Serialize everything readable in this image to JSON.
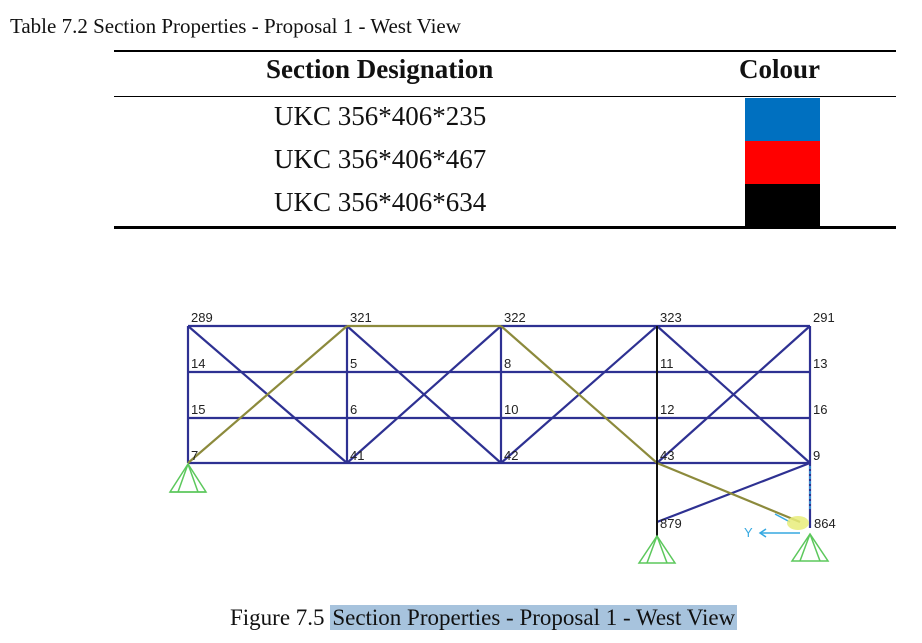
{
  "table": {
    "caption": "Table 7.2 Section Properties - Proposal 1 - West View",
    "headers": {
      "designation": "Section Designation",
      "colour": "Colour"
    },
    "rows": [
      {
        "designation": "UKC 356*406*235",
        "colour": "#0070c0"
      },
      {
        "designation": "UKC 356*406*467",
        "colour": "#ff0000"
      },
      {
        "designation": "UKC 356*406*634",
        "colour": "#000000"
      }
    ]
  },
  "figure": {
    "member_colours": {
      "blue": "#2e3192",
      "olive": "#8c8a3c",
      "black": "#111111",
      "support": "#5cc85c",
      "axis": "#36a9e1"
    },
    "nodes": {
      "n289": "289",
      "n321": "321",
      "n322": "322",
      "n323": "323",
      "n291": "291",
      "n14": "14",
      "n5": "5",
      "n8": "8",
      "n11": "11",
      "n13": "13",
      "n15": "15",
      "n6": "6",
      "n10": "10",
      "n12": "12",
      "n16": "16",
      "n7": "7",
      "n41": "41",
      "n42": "42",
      "n43": "43",
      "n9": "9",
      "n879": "879",
      "n864": "864"
    },
    "axis_labels": {
      "y": "Y"
    },
    "caption_prefix": "Figure 7.5 ",
    "caption_highlight": "Section Properties - Proposal 1 - West View"
  }
}
